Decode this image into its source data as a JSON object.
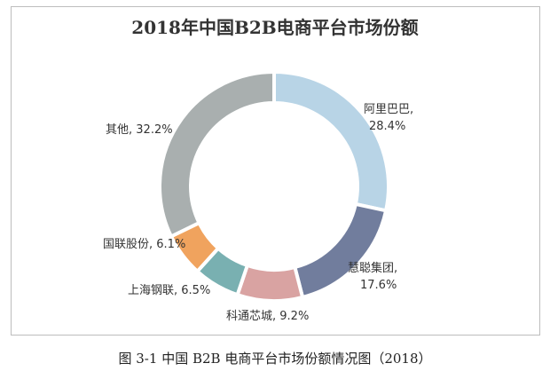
{
  "chart_data": {
    "type": "pie",
    "title": "2018年中国B2B电商平台市场份额",
    "donut": true,
    "categories": [
      "阿里巴巴",
      "慧聪集团",
      "科通芯城",
      "上海钢联",
      "国联股份",
      "其他"
    ],
    "values": [
      28.4,
      17.6,
      9.2,
      6.5,
      6.1,
      32.2
    ],
    "value_labels": [
      "28.4%",
      "17.6%",
      "9.2%",
      "6.5%",
      "6.1%",
      "32.2%"
    ],
    "colors": [
      "#b8d4e6",
      "#717d9d",
      "#d9a3a2",
      "#79b0b1",
      "#f0a35e",
      "#a9afaf"
    ],
    "legend": "none"
  },
  "caption": "图 3-1 中国 B2B 电商平台市场份额情况图（2018）"
}
